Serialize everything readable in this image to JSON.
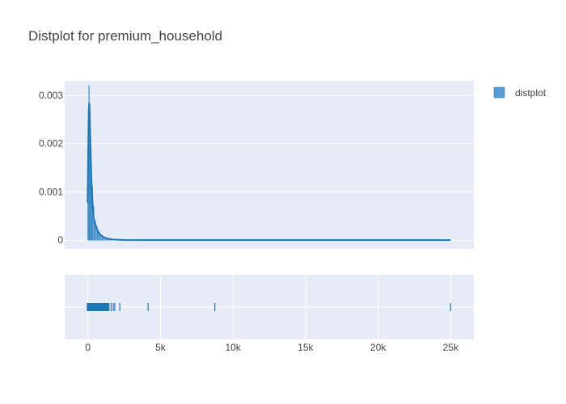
{
  "chart_data": {
    "type": "area",
    "title": "Distplot for premium_household",
    "xlabel": "",
    "ylabel": "",
    "xlim": [
      -1600,
      26600
    ],
    "ylim": [
      -0.00018,
      0.0033
    ],
    "grid": true,
    "legend_position": "top-right",
    "colors": {
      "plot_bg": "#e5ecf6",
      "series": "#1f77b4",
      "hist_fill": "#5b9bd5",
      "grid": "#ffffff",
      "text": "#444444"
    },
    "y_ticks": [
      {
        "value": 0,
        "label": "0"
      },
      {
        "value": 0.001,
        "label": "0.001"
      },
      {
        "value": 0.002,
        "label": "0.002"
      },
      {
        "value": 0.003,
        "label": "0.003"
      }
    ],
    "x_ticks": [
      {
        "value": 0,
        "label": "0"
      },
      {
        "value": 5000,
        "label": "5k"
      },
      {
        "value": 10000,
        "label": "10k"
      },
      {
        "value": 15000,
        "label": "15k"
      },
      {
        "value": 20000,
        "label": "20k"
      },
      {
        "value": 25000,
        "label": "25k"
      }
    ],
    "series": [
      {
        "name": "distplot",
        "histogram": [
          {
            "x0": -20,
            "x1": 60,
            "density": 0.00078
          },
          {
            "x0": 60,
            "x1": 100,
            "density": 0.0032
          },
          {
            "x0": 100,
            "x1": 150,
            "density": 0.0028
          },
          {
            "x0": 150,
            "x1": 200,
            "density": 0.0022
          },
          {
            "x0": 200,
            "x1": 260,
            "density": 0.0016
          },
          {
            "x0": 260,
            "x1": 330,
            "density": 0.0011
          },
          {
            "x0": 330,
            "x1": 420,
            "density": 0.0007
          },
          {
            "x0": 420,
            "x1": 520,
            "density": 0.00042
          },
          {
            "x0": 520,
            "x1": 650,
            "density": 0.00028
          },
          {
            "x0": 650,
            "x1": 800,
            "density": 0.00018
          },
          {
            "x0": 800,
            "x1": 1000,
            "density": 0.0001
          },
          {
            "x0": 1000,
            "x1": 1250,
            "density": 5e-05
          },
          {
            "x0": 1250,
            "x1": 1600,
            "density": 2e-05
          }
        ],
        "kde": {
          "x": [
            -20,
            20,
            60,
            90,
            120,
            150,
            180,
            220,
            270,
            330,
            400,
            500,
            620,
            750,
            900,
            1100,
            1400,
            1800,
            2500,
            4000,
            8000,
            15000,
            20000,
            25000
          ],
          "y": [
            0.00078,
            0.0018,
            0.0027,
            0.00285,
            0.0027,
            0.0023,
            0.0019,
            0.00145,
            0.00105,
            0.00072,
            0.00045,
            0.00035,
            0.00023,
            0.00015,
            0.0001,
            6e-05,
            3e-05,
            1.2e-05,
            4e-06,
            2e-06,
            1e-06,
            1e-06,
            1e-06,
            1e-06
          ]
        },
        "rug": [
          -40,
          0,
          30,
          60,
          100,
          140,
          180,
          220,
          260,
          300,
          340,
          380,
          420,
          460,
          500,
          540,
          580,
          620,
          660,
          700,
          740,
          780,
          820,
          860,
          900,
          940,
          980,
          1020,
          1060,
          1100,
          1150,
          1200,
          1250,
          1300,
          1350,
          1400,
          1450,
          1600,
          1750,
          1850,
          2200,
          4150,
          8750,
          25000
        ]
      }
    ]
  }
}
